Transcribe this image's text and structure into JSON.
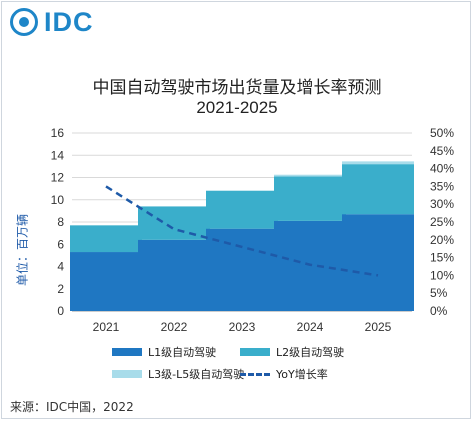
{
  "logo": {
    "text": "IDC"
  },
  "title": {
    "line1": "中国自动驾驶市场出货量及增长率预测",
    "line2": "2021-2025"
  },
  "yaxis_label": "单位：百万辆",
  "source": "来源：IDC中国，2022",
  "colors": {
    "l1": "#1f77c2",
    "l2": "#3aaecb",
    "l3": "#a8dcea",
    "yoy": "#1e5aa8"
  },
  "legend": [
    {
      "key": "l1",
      "label": "L1级自动驾驶",
      "style": "swatch"
    },
    {
      "key": "l2",
      "label": "L2级自动驾驶",
      "style": "swatch"
    },
    {
      "key": "l3",
      "label": "L3级-L5级自动驾驶",
      "style": "swatch"
    },
    {
      "key": "yoy",
      "label": "YoY增长率",
      "style": "dash"
    }
  ],
  "chart_data": {
    "type": "bar",
    "stacked": true,
    "categories": [
      "2021",
      "2022",
      "2023",
      "2024",
      "2025"
    ],
    "series": [
      {
        "name": "L1级自动驾驶",
        "values": [
          5.3,
          6.4,
          7.4,
          8.1,
          8.7
        ]
      },
      {
        "name": "L2级自动驾驶",
        "values": [
          2.4,
          3.0,
          3.4,
          4.0,
          4.5
        ]
      },
      {
        "name": "L3级-L5级自动驾驶",
        "values": [
          0,
          0,
          0.05,
          0.15,
          0.25
        ]
      }
    ],
    "line_series": {
      "name": "YoY增长率",
      "axis": "right",
      "values": [
        35,
        23,
        18,
        13,
        10
      ]
    },
    "ylim": [
      0,
      16
    ],
    "yticks": [
      0,
      2,
      4,
      6,
      8,
      10,
      12,
      14,
      16
    ],
    "y2lim": [
      0,
      50
    ],
    "y2ticks": [
      "0%",
      "5%",
      "10%",
      "15%",
      "20%",
      "25%",
      "30%",
      "35%",
      "40%",
      "45%",
      "50%"
    ],
    "grid": true,
    "legend_position": "bottom"
  }
}
